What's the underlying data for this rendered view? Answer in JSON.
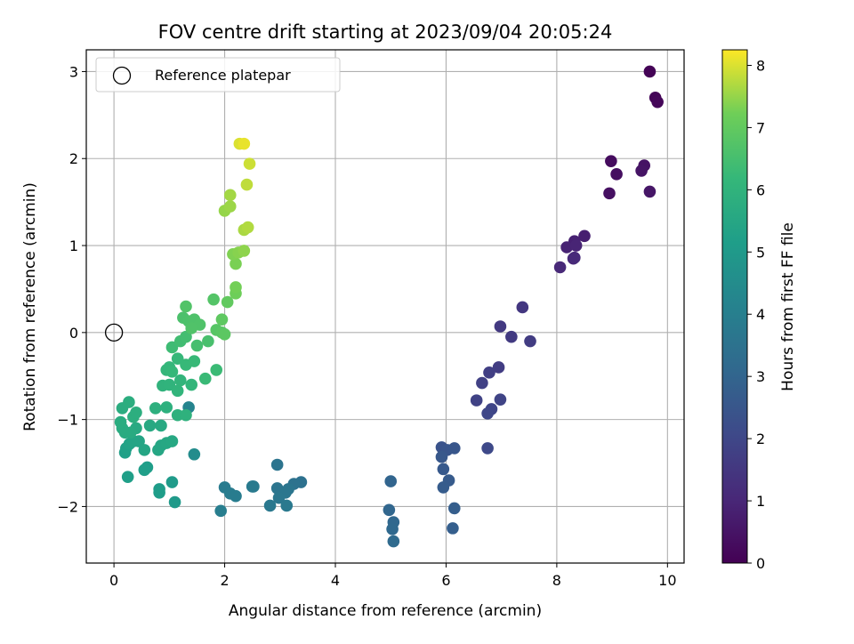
{
  "chart_data": {
    "type": "scatter",
    "title": "FOV centre drift starting at 2023/09/04 20:05:24",
    "xlabel": "Angular distance from reference (arcmin)",
    "ylabel": "Rotation from reference (arcmin)",
    "xlim": [
      -0.5,
      10.3
    ],
    "ylim": [
      -2.65,
      3.25
    ],
    "xticks": [
      0,
      2,
      4,
      6,
      8,
      10
    ],
    "xtick_labels": [
      "0",
      "2",
      "4",
      "6",
      "8",
      "10"
    ],
    "yticks": [
      -2,
      -1,
      0,
      1,
      2,
      3
    ],
    "ytick_labels": [
      "−2",
      "−1",
      "0",
      "1",
      "2",
      "3"
    ],
    "grid": true,
    "legend": {
      "placement": "top-left",
      "label": "Reference platepar"
    },
    "reference_point": {
      "x": 0,
      "y": 0
    },
    "colorbar": {
      "label": "Hours from first FF file",
      "range": [
        0,
        8.25
      ],
      "ticks": [
        0,
        1,
        2,
        3,
        4,
        5,
        6,
        7,
        8
      ],
      "tick_labels": [
        "0",
        "1",
        "2",
        "3",
        "4",
        "5",
        "6",
        "7",
        "8"
      ],
      "colormap": "viridis"
    },
    "points": [
      {
        "x": 9.68,
        "y": 3.0,
        "h": 0.05
      },
      {
        "x": 9.78,
        "y": 2.7,
        "h": 0.1
      },
      {
        "x": 9.82,
        "y": 2.65,
        "h": 0.15
      },
      {
        "x": 8.98,
        "y": 1.97,
        "h": 0.3
      },
      {
        "x": 9.08,
        "y": 1.82,
        "h": 0.35
      },
      {
        "x": 8.95,
        "y": 1.6,
        "h": 0.4
      },
      {
        "x": 9.58,
        "y": 1.92,
        "h": 0.45
      },
      {
        "x": 9.53,
        "y": 1.86,
        "h": 0.5
      },
      {
        "x": 9.68,
        "y": 1.62,
        "h": 0.55
      },
      {
        "x": 8.5,
        "y": 1.11,
        "h": 0.8
      },
      {
        "x": 8.32,
        "y": 1.05,
        "h": 0.85
      },
      {
        "x": 8.18,
        "y": 0.98,
        "h": 0.9
      },
      {
        "x": 8.35,
        "y": 1.0,
        "h": 0.95
      },
      {
        "x": 8.3,
        "y": 0.85,
        "h": 1.0
      },
      {
        "x": 8.06,
        "y": 0.75,
        "h": 1.05
      },
      {
        "x": 8.32,
        "y": 0.86,
        "h": 1.1
      },
      {
        "x": 7.38,
        "y": 0.29,
        "h": 1.5
      },
      {
        "x": 6.98,
        "y": 0.07,
        "h": 1.55
      },
      {
        "x": 7.18,
        "y": -0.05,
        "h": 1.6
      },
      {
        "x": 7.52,
        "y": -0.1,
        "h": 1.65
      },
      {
        "x": 6.95,
        "y": -0.4,
        "h": 1.7
      },
      {
        "x": 6.78,
        "y": -0.46,
        "h": 1.75
      },
      {
        "x": 6.65,
        "y": -0.58,
        "h": 1.8
      },
      {
        "x": 6.55,
        "y": -0.78,
        "h": 1.85
      },
      {
        "x": 6.98,
        "y": -0.77,
        "h": 1.9
      },
      {
        "x": 6.82,
        "y": -0.88,
        "h": 1.95
      },
      {
        "x": 6.75,
        "y": -0.93,
        "h": 2.0
      },
      {
        "x": 6.75,
        "y": -1.33,
        "h": 2.05
      },
      {
        "x": 5.92,
        "y": -1.32,
        "h": 2.4
      },
      {
        "x": 6.02,
        "y": -1.35,
        "h": 2.45
      },
      {
        "x": 6.15,
        "y": -1.33,
        "h": 2.5
      },
      {
        "x": 5.92,
        "y": -1.43,
        "h": 2.55
      },
      {
        "x": 5.95,
        "y": -1.57,
        "h": 2.6
      },
      {
        "x": 6.05,
        "y": -1.7,
        "h": 2.65
      },
      {
        "x": 5.95,
        "y": -1.78,
        "h": 2.7
      },
      {
        "x": 6.15,
        "y": -2.02,
        "h": 2.75
      },
      {
        "x": 6.12,
        "y": -2.25,
        "h": 2.8
      },
      {
        "x": 5.0,
        "y": -1.71,
        "h": 3.0
      },
      {
        "x": 4.97,
        "y": -2.04,
        "h": 3.05
      },
      {
        "x": 5.05,
        "y": -2.18,
        "h": 3.1
      },
      {
        "x": 5.03,
        "y": -2.26,
        "h": 3.15
      },
      {
        "x": 5.05,
        "y": -2.4,
        "h": 3.2
      },
      {
        "x": 3.38,
        "y": -1.72,
        "h": 3.45
      },
      {
        "x": 3.25,
        "y": -1.74,
        "h": 3.5
      },
      {
        "x": 2.95,
        "y": -1.52,
        "h": 3.55
      },
      {
        "x": 2.95,
        "y": -1.79,
        "h": 3.6
      },
      {
        "x": 3.15,
        "y": -1.8,
        "h": 3.62
      },
      {
        "x": 3.1,
        "y": -1.84,
        "h": 3.65
      },
      {
        "x": 2.98,
        "y": -1.9,
        "h": 3.7
      },
      {
        "x": 2.82,
        "y": -1.99,
        "h": 3.72
      },
      {
        "x": 3.12,
        "y": -1.99,
        "h": 3.75
      },
      {
        "x": 2.5,
        "y": -1.77,
        "h": 3.8
      },
      {
        "x": 2.52,
        "y": -1.77,
        "h": 3.82
      },
      {
        "x": 2.0,
        "y": -1.78,
        "h": 3.85
      },
      {
        "x": 2.1,
        "y": -1.85,
        "h": 3.88
      },
      {
        "x": 2.2,
        "y": -1.88,
        "h": 3.9
      },
      {
        "x": 1.93,
        "y": -2.05,
        "h": 3.95
      },
      {
        "x": 1.35,
        "y": -0.86,
        "h": 4.2
      },
      {
        "x": 1.45,
        "y": -1.4,
        "h": 4.5
      },
      {
        "x": 1.1,
        "y": -1.95,
        "h": 5.0
      },
      {
        "x": 1.05,
        "y": -1.72,
        "h": 5.05
      },
      {
        "x": 0.82,
        "y": -1.8,
        "h": 5.1
      },
      {
        "x": 0.82,
        "y": -1.84,
        "h": 5.12
      },
      {
        "x": 0.6,
        "y": -1.55,
        "h": 5.15
      },
      {
        "x": 0.55,
        "y": -1.58,
        "h": 5.18
      },
      {
        "x": 0.25,
        "y": -1.66,
        "h": 5.2
      },
      {
        "x": 0.2,
        "y": -1.38,
        "h": 5.25
      },
      {
        "x": 0.22,
        "y": -1.33,
        "h": 5.3
      },
      {
        "x": 0.28,
        "y": -1.28,
        "h": 5.35
      },
      {
        "x": 0.35,
        "y": -1.25,
        "h": 5.4
      },
      {
        "x": 0.45,
        "y": -1.25,
        "h": 5.42
      },
      {
        "x": 0.55,
        "y": -1.35,
        "h": 5.45
      },
      {
        "x": 0.8,
        "y": -1.35,
        "h": 5.48
      },
      {
        "x": 0.85,
        "y": -1.3,
        "h": 5.5
      },
      {
        "x": 0.95,
        "y": -1.27,
        "h": 5.52
      },
      {
        "x": 1.05,
        "y": -1.25,
        "h": 5.55
      },
      {
        "x": 0.65,
        "y": -1.07,
        "h": 5.58
      },
      {
        "x": 0.85,
        "y": -1.07,
        "h": 5.6
      },
      {
        "x": 0.4,
        "y": -1.1,
        "h": 5.62
      },
      {
        "x": 0.3,
        "y": -1.15,
        "h": 5.65
      },
      {
        "x": 0.2,
        "y": -1.15,
        "h": 5.68
      },
      {
        "x": 0.15,
        "y": -1.1,
        "h": 5.7
      },
      {
        "x": 0.12,
        "y": -1.03,
        "h": 5.72
      },
      {
        "x": 0.15,
        "y": -0.87,
        "h": 5.75
      },
      {
        "x": 0.27,
        "y": -0.8,
        "h": 5.78
      },
      {
        "x": 0.35,
        "y": -0.97,
        "h": 5.8
      },
      {
        "x": 0.4,
        "y": -0.92,
        "h": 5.82
      },
      {
        "x": 0.75,
        "y": -0.87,
        "h": 5.85
      },
      {
        "x": 0.95,
        "y": -0.86,
        "h": 5.88
      },
      {
        "x": 1.15,
        "y": -0.95,
        "h": 5.9
      },
      {
        "x": 1.3,
        "y": -0.95,
        "h": 5.92
      },
      {
        "x": 0.88,
        "y": -0.61,
        "h": 6.0
      },
      {
        "x": 1.0,
        "y": -0.6,
        "h": 6.02
      },
      {
        "x": 1.15,
        "y": -0.67,
        "h": 6.05
      },
      {
        "x": 1.2,
        "y": -0.55,
        "h": 6.08
      },
      {
        "x": 1.4,
        "y": -0.6,
        "h": 6.1
      },
      {
        "x": 0.95,
        "y": -0.43,
        "h": 6.12
      },
      {
        "x": 1.0,
        "y": -0.4,
        "h": 6.15
      },
      {
        "x": 1.05,
        "y": -0.45,
        "h": 6.18
      },
      {
        "x": 1.15,
        "y": -0.3,
        "h": 6.2
      },
      {
        "x": 1.3,
        "y": -0.37,
        "h": 6.22
      },
      {
        "x": 1.45,
        "y": -0.33,
        "h": 6.25
      },
      {
        "x": 1.65,
        "y": -0.53,
        "h": 6.28
      },
      {
        "x": 1.85,
        "y": -0.43,
        "h": 6.3
      },
      {
        "x": 1.05,
        "y": -0.17,
        "h": 6.35
      },
      {
        "x": 1.2,
        "y": -0.1,
        "h": 6.4
      },
      {
        "x": 1.3,
        "y": -0.05,
        "h": 6.45
      },
      {
        "x": 1.5,
        "y": -0.15,
        "h": 6.5
      },
      {
        "x": 1.7,
        "y": -0.1,
        "h": 6.55
      },
      {
        "x": 1.25,
        "y": 0.17,
        "h": 6.6
      },
      {
        "x": 1.35,
        "y": 0.13,
        "h": 6.62
      },
      {
        "x": 1.45,
        "y": 0.15,
        "h": 6.65
      },
      {
        "x": 1.55,
        "y": 0.09,
        "h": 6.68
      },
      {
        "x": 1.4,
        "y": 0.05,
        "h": 6.7
      },
      {
        "x": 1.3,
        "y": 0.3,
        "h": 6.72
      },
      {
        "x": 1.8,
        "y": 0.38,
        "h": 6.75
      },
      {
        "x": 1.85,
        "y": 0.03,
        "h": 6.8
      },
      {
        "x": 1.95,
        "y": 0.0,
        "h": 6.85
      },
      {
        "x": 2.0,
        "y": -0.02,
        "h": 6.9
      },
      {
        "x": 1.95,
        "y": 0.15,
        "h": 6.95
      },
      {
        "x": 2.05,
        "y": 0.35,
        "h": 7.0
      },
      {
        "x": 2.2,
        "y": 0.45,
        "h": 7.2
      },
      {
        "x": 2.2,
        "y": 0.52,
        "h": 7.25
      },
      {
        "x": 2.2,
        "y": 0.79,
        "h": 7.3
      },
      {
        "x": 2.15,
        "y": 0.9,
        "h": 7.35
      },
      {
        "x": 2.25,
        "y": 0.92,
        "h": 7.4
      },
      {
        "x": 2.35,
        "y": 0.94,
        "h": 7.45
      },
      {
        "x": 2.0,
        "y": 1.4,
        "h": 7.5
      },
      {
        "x": 2.1,
        "y": 1.45,
        "h": 7.55
      },
      {
        "x": 2.1,
        "y": 1.58,
        "h": 7.6
      },
      {
        "x": 2.35,
        "y": 1.18,
        "h": 7.65
      },
      {
        "x": 2.42,
        "y": 1.21,
        "h": 7.7
      },
      {
        "x": 2.4,
        "y": 1.7,
        "h": 7.8
      },
      {
        "x": 2.45,
        "y": 1.94,
        "h": 7.9
      },
      {
        "x": 2.27,
        "y": 2.17,
        "h": 8.0
      },
      {
        "x": 2.35,
        "y": 2.17,
        "h": 8.1
      }
    ]
  }
}
